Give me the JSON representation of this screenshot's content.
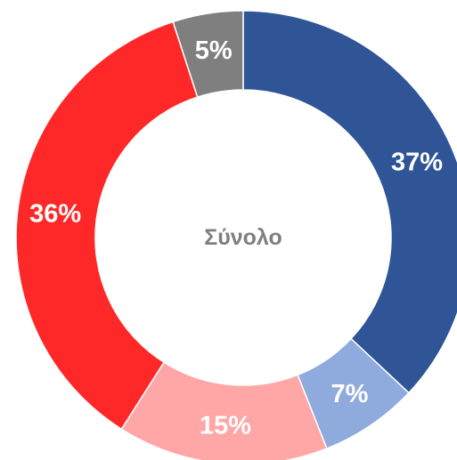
{
  "chart_data": {
    "type": "pie",
    "donut": true,
    "center_label": "Σύνολο",
    "values": [
      37,
      7,
      15,
      36,
      5
    ],
    "value_labels": [
      "37%",
      "7%",
      "15%",
      "36%",
      "5%"
    ],
    "colors": [
      "#2f5597",
      "#8faadc",
      "#ffa6a6",
      "#ff2828",
      "#7f7f7f"
    ]
  }
}
